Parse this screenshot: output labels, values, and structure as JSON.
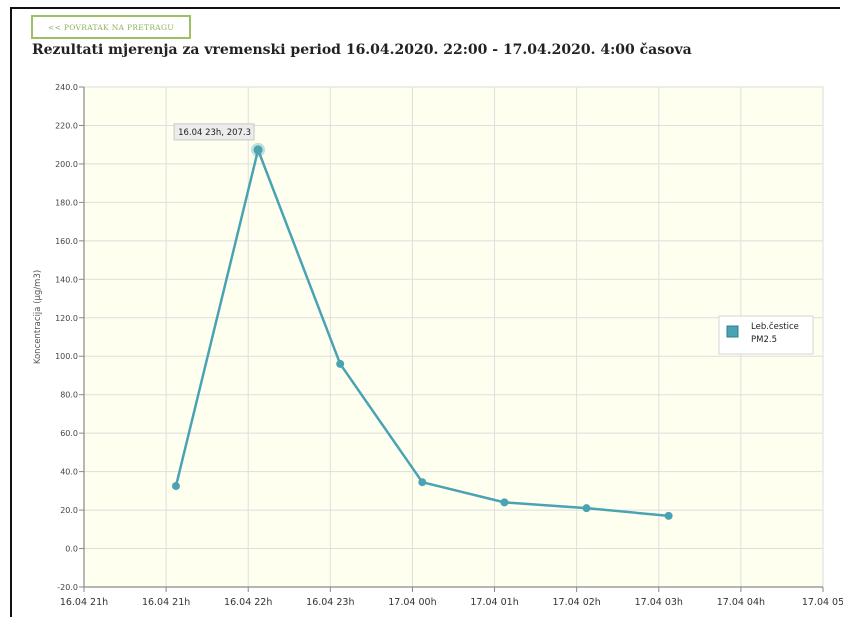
{
  "back_button": {
    "label": "<< POVRATAK NA PRETRAGU"
  },
  "page_title": "Rezultati mjerenja za vremenski period 16.04.2020. 22:00 - 17.04.2020. 4:00 časova",
  "colors": {
    "series": "#4aa3b3",
    "accent": "#8fb25a",
    "plot_bg": "#fffff0",
    "grid": "#dedede"
  },
  "chart_data": {
    "type": "line",
    "title": "",
    "ylabel": "Koncentracija (µg/m3)",
    "xlabel": "",
    "ylim": [
      -20,
      240
    ],
    "yticks": [
      "-20.0",
      "0.0",
      "20.0",
      "40.0",
      "60.0",
      "80.0",
      "100.0",
      "120.0",
      "140.0",
      "160.0",
      "180.0",
      "200.0",
      "220.0",
      "240.0"
    ],
    "xticks": [
      "16.04 21h",
      "16.04 21h",
      "16.04 22h",
      "16.04 23h",
      "17.04 00h",
      "17.04 01h",
      "17.04 02h",
      "17.04 03h",
      "17.04 04h",
      "17.04 05"
    ],
    "grid": true,
    "legend_position": "right",
    "series": [
      {
        "name": "Leb.čestice PM2.5",
        "legend_lines": [
          "Leb.čestice",
          "PM2.5"
        ],
        "x": [
          "16.04 22h",
          "16.04 23h",
          "17.04 00h",
          "17.04 01h",
          "17.04 02h",
          "17.04 03h",
          "17.04 04h"
        ],
        "values": [
          32.5,
          207.3,
          96.0,
          34.5,
          24.0,
          21.0,
          17.0
        ]
      }
    ],
    "tooltip": {
      "text": "16.04 23h, 207.3",
      "point_index": 1
    }
  }
}
